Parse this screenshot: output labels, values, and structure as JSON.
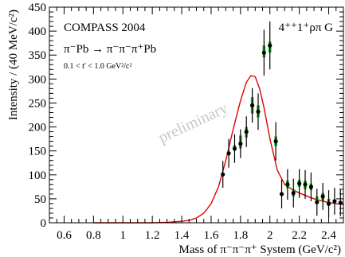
{
  "chart_data": {
    "type": "scatter",
    "xlabel": "Mass of π⁻π⁻π⁺ System (GeV/c²)",
    "ylabel": "Intensity / (40 MeV/c²)",
    "xlim": [
      0.5,
      2.5
    ],
    "ylim": [
      0,
      450
    ],
    "x_ticks": [
      0.6,
      0.8,
      1,
      1.2,
      1.4,
      1.6,
      1.8,
      2,
      2.2,
      2.4
    ],
    "x_tick_labels": [
      "0.6",
      "0.8",
      "1",
      "1.2",
      "1.4",
      "1.6",
      "1.8",
      "2",
      "2.2",
      "2.4"
    ],
    "y_ticks": [
      0,
      50,
      100,
      150,
      200,
      250,
      300,
      350,
      400,
      450
    ],
    "y_tick_labels": [
      "0",
      "50",
      "100",
      "150",
      "200",
      "250",
      "300",
      "350",
      "400",
      "450"
    ],
    "grid": false,
    "annotations": {
      "experiment": "COMPASS 2004",
      "reaction": "π⁻Pb → π⁻π⁻π⁺Pb",
      "t_range": "0.1 < t' < 1.0 GeV²/c²",
      "wave": "4⁺⁺1⁺ρπ G",
      "watermark": "preliminary"
    },
    "series": [
      {
        "style": "points-with-errors",
        "color": "#000000",
        "x": [
          1.68,
          1.72,
          1.76,
          1.8,
          1.84,
          1.88,
          1.92,
          1.96,
          2.0,
          2.04,
          2.08,
          2.12,
          2.16,
          2.2,
          2.24,
          2.28,
          2.32,
          2.36,
          2.4,
          2.44,
          2.48
        ],
        "y": [
          101,
          145,
          155,
          165,
          190,
          245,
          232,
          355,
          370,
          170,
          60,
          80,
          62,
          82,
          80,
          75,
          43,
          55,
          40,
          45,
          42
        ],
        "y_err": [
          28,
          30,
          30,
          30,
          32,
          36,
          38,
          48,
          50,
          40,
          30,
          32,
          30,
          30,
          30,
          30,
          28,
          28,
          28,
          28,
          28
        ]
      },
      {
        "style": "systematic-band",
        "color": "#22b022",
        "x": [
          1.76,
          1.8,
          1.84,
          1.88,
          1.92,
          1.96,
          2.0,
          2.04,
          2.12,
          2.16,
          2.2,
          2.24,
          2.28,
          2.32,
          2.36,
          2.4
        ],
        "y_low": [
          150,
          155,
          178,
          228,
          220,
          345,
          355,
          160,
          72,
          55,
          75,
          70,
          68,
          40,
          45,
          35
        ],
        "y_high": [
          162,
          182,
          200,
          262,
          245,
          370,
          378,
          180,
          88,
          70,
          90,
          88,
          82,
          55,
          62,
          50
        ]
      },
      {
        "style": "fit-line",
        "color": "#e00000",
        "x": [
          0.8,
          1.0,
          1.2,
          1.3,
          1.4,
          1.45,
          1.5,
          1.55,
          1.6,
          1.65,
          1.7,
          1.75,
          1.8,
          1.84,
          1.87,
          1.9,
          1.93,
          1.96,
          2.0,
          2.05,
          2.1,
          2.15,
          2.2,
          2.25,
          2.3,
          2.35,
          2.4,
          2.45,
          2.5
        ],
        "y": [
          0,
          0,
          0,
          1,
          3,
          5,
          10,
          20,
          40,
          75,
          130,
          195,
          255,
          293,
          307,
          305,
          280,
          240,
          175,
          110,
          80,
          70,
          62,
          56,
          50,
          46,
          42,
          40,
          38
        ]
      }
    ]
  }
}
